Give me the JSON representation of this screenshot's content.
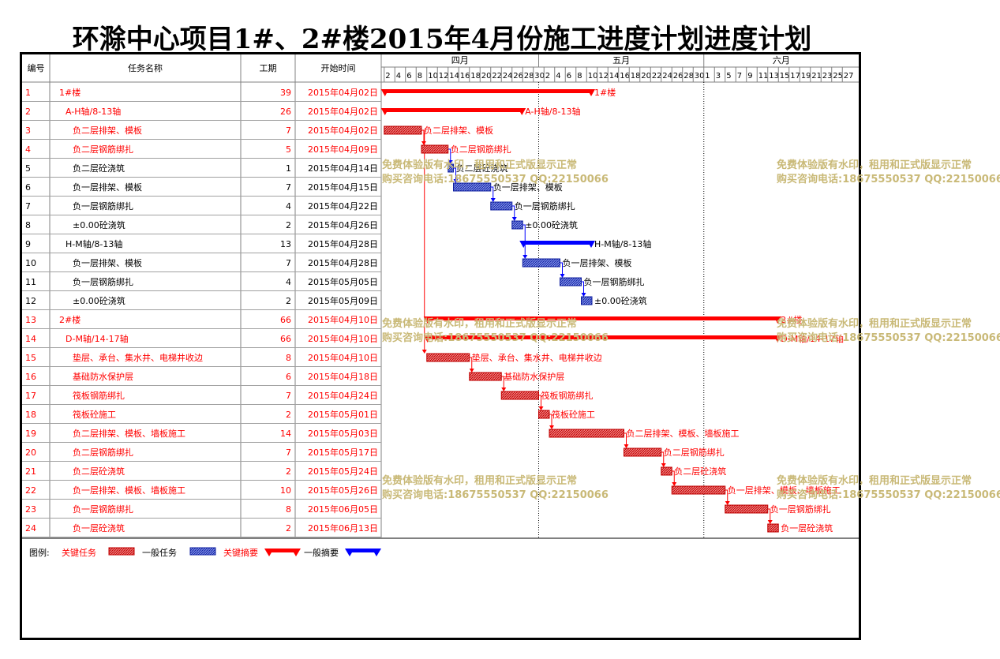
{
  "title": "环滁中心项目1#、2#楼2015年4月份施工进度计划进度计划",
  "columns": {
    "id": "编号",
    "name": "任务名称",
    "duration": "工期",
    "start": "开始时间"
  },
  "months": [
    "四月",
    "五月",
    "六月"
  ],
  "day_ticks": {
    "april": [
      "2",
      "4",
      "6",
      "8",
      "10",
      "12",
      "14",
      "16",
      "18",
      "20",
      "22",
      "24",
      "26",
      "28",
      "30"
    ],
    "may": [
      "2",
      "4",
      "6",
      "8",
      "10",
      "12",
      "14",
      "16",
      "18",
      "20",
      "22",
      "24",
      "26",
      "28",
      "30"
    ],
    "june": [
      "1",
      "3",
      "5",
      "7",
      "9",
      "11",
      "13",
      "15",
      "17",
      "19",
      "21",
      "23",
      "25",
      "27"
    ]
  },
  "colors": {
    "critical": "#ff0000",
    "normal": "#0000ff",
    "critical_fill": "#e05050",
    "normal_fill": "#4a5fd0",
    "watermark": "#c9b977"
  },
  "chart_data": {
    "type": "gantt",
    "date_axis": [
      "2015-04-01",
      "2015-06-29"
    ],
    "tasks": [
      {
        "id": "1",
        "name": "1#楼",
        "duration": "39",
        "start": "2015年04月02日",
        "start_date": "2015-04-02",
        "days": 39,
        "kind": "critical-summary",
        "level": 0,
        "label": "1#楼"
      },
      {
        "id": "2",
        "name": "A-H轴/8-13轴",
        "duration": "26",
        "start": "2015年04月02日",
        "start_date": "2015-04-02",
        "days": 26,
        "kind": "critical-summary",
        "level": 1,
        "label": "A-H轴/8-13轴"
      },
      {
        "id": "3",
        "name": "负二层排架、模板",
        "duration": "7",
        "start": "2015年04月02日",
        "start_date": "2015-04-02",
        "days": 7,
        "kind": "critical-task",
        "level": 2,
        "label": "负二层排架、模板"
      },
      {
        "id": "4",
        "name": "负二层钢筋绑扎",
        "duration": "5",
        "start": "2015年04月09日",
        "start_date": "2015-04-09",
        "days": 5,
        "kind": "critical-task",
        "level": 2,
        "label": "负二层钢筋绑扎"
      },
      {
        "id": "5",
        "name": "负二层砼浇筑",
        "duration": "1",
        "start": "2015年04月14日",
        "start_date": "2015-04-14",
        "days": 1,
        "kind": "normal-task",
        "level": 2,
        "label": "负二层砼浇筑"
      },
      {
        "id": "6",
        "name": "负一层排架、模板",
        "duration": "7",
        "start": "2015年04月15日",
        "start_date": "2015-04-15",
        "days": 7,
        "kind": "normal-task",
        "level": 2,
        "label": "负一层排架、模板"
      },
      {
        "id": "7",
        "name": "负一层钢筋绑扎",
        "duration": "4",
        "start": "2015年04月22日",
        "start_date": "2015-04-22",
        "days": 4,
        "kind": "normal-task",
        "level": 2,
        "label": "负一层钢筋绑扎"
      },
      {
        "id": "8",
        "name": "±0.00砼浇筑",
        "duration": "2",
        "start": "2015年04月26日",
        "start_date": "2015-04-26",
        "days": 2,
        "kind": "normal-task",
        "level": 2,
        "label": "±0.00砼浇筑"
      },
      {
        "id": "9",
        "name": "H-M轴/8-13轴",
        "duration": "13",
        "start": "2015年04月28日",
        "start_date": "2015-04-28",
        "days": 13,
        "kind": "normal-summary",
        "level": 1,
        "label": "H-M轴/8-13轴"
      },
      {
        "id": "10",
        "name": "负一层排架、模板",
        "duration": "7",
        "start": "2015年04月28日",
        "start_date": "2015-04-28",
        "days": 7,
        "kind": "normal-task",
        "level": 2,
        "label": "负一层排架、模板"
      },
      {
        "id": "11",
        "name": "负一层钢筋绑扎",
        "duration": "4",
        "start": "2015年05月05日",
        "start_date": "2015-05-05",
        "days": 4,
        "kind": "normal-task",
        "level": 2,
        "label": "负一层钢筋绑扎"
      },
      {
        "id": "12",
        "name": "±0.00砼浇筑",
        "duration": "2",
        "start": "2015年05月09日",
        "start_date": "2015-05-09",
        "days": 2,
        "kind": "normal-task",
        "level": 2,
        "label": "±0.00砼浇筑"
      },
      {
        "id": "13",
        "name": "2#楼",
        "duration": "66",
        "start": "2015年04月10日",
        "start_date": "2015-04-10",
        "days": 66,
        "kind": "critical-summary",
        "level": 0,
        "label": "2#楼"
      },
      {
        "id": "14",
        "name": "D-M轴/14-17轴",
        "duration": "66",
        "start": "2015年04月10日",
        "start_date": "2015-04-10",
        "days": 66,
        "kind": "critical-summary",
        "level": 1,
        "label": "D-M轴/14-17轴"
      },
      {
        "id": "15",
        "name": "垫层、承台、集水井、电梯井收边",
        "duration": "8",
        "start": "2015年04月10日",
        "start_date": "2015-04-10",
        "days": 8,
        "kind": "critical-task",
        "level": 2,
        "label": "垫层、承台、集水井、电梯井收边"
      },
      {
        "id": "16",
        "name": "基础防水保护层",
        "duration": "6",
        "start": "2015年04月18日",
        "start_date": "2015-04-18",
        "days": 6,
        "kind": "critical-task",
        "level": 2,
        "label": "基础防水保护层"
      },
      {
        "id": "17",
        "name": "筏板钢筋绑扎",
        "duration": "7",
        "start": "2015年04月24日",
        "start_date": "2015-04-24",
        "days": 7,
        "kind": "critical-task",
        "level": 2,
        "label": "筏板钢筋绑扎"
      },
      {
        "id": "18",
        "name": "筏板砼施工",
        "duration": "2",
        "start": "2015年05月01日",
        "start_date": "2015-05-01",
        "days": 2,
        "kind": "critical-task",
        "level": 2,
        "label": "筏板砼施工"
      },
      {
        "id": "19",
        "name": "负二层排架、模板、墙板施工",
        "duration": "14",
        "start": "2015年05月03日",
        "start_date": "2015-05-03",
        "days": 14,
        "kind": "critical-task",
        "level": 2,
        "label": "负二层排架、模板、墙板施工"
      },
      {
        "id": "20",
        "name": "负二层钢筋绑扎",
        "duration": "7",
        "start": "2015年05月17日",
        "start_date": "2015-05-17",
        "days": 7,
        "kind": "critical-task",
        "level": 2,
        "label": "负二层钢筋绑扎"
      },
      {
        "id": "21",
        "name": "负二层砼浇筑",
        "duration": "2",
        "start": "2015年05月24日",
        "start_date": "2015-05-24",
        "days": 2,
        "kind": "critical-task",
        "level": 2,
        "label": "负二层砼浇筑"
      },
      {
        "id": "22",
        "name": "负一层排架、模板、墙板施工",
        "duration": "10",
        "start": "2015年05月26日",
        "start_date": "2015-05-26",
        "days": 10,
        "kind": "critical-task",
        "level": 2,
        "label": "负一层排架、模板、墙板施工"
      },
      {
        "id": "23",
        "name": "负一层钢筋绑扎",
        "duration": "8",
        "start": "2015年06月05日",
        "start_date": "2015-06-05",
        "days": 8,
        "kind": "critical-task",
        "level": 2,
        "label": "负一层钢筋绑扎"
      },
      {
        "id": "24",
        "name": "负一层砼浇筑",
        "duration": "2",
        "start": "2015年06月13日",
        "start_date": "2015-06-13",
        "days": 2,
        "kind": "critical-task",
        "level": 2,
        "label": "负一层砼浇筑"
      }
    ]
  },
  "legend": {
    "prefix": "图例:",
    "items": [
      {
        "label": "关键任务",
        "kind": "critical-task"
      },
      {
        "label": "一般任务",
        "kind": "normal-task"
      },
      {
        "label": "关键摘要",
        "kind": "critical-summary"
      },
      {
        "label": "一般摘要",
        "kind": "normal-summary"
      }
    ]
  },
  "watermark": {
    "line1": "免费体验版有水印，租用和正式版显示正常",
    "line2": "购买咨询电话:18675550537 QQ:22150066"
  }
}
